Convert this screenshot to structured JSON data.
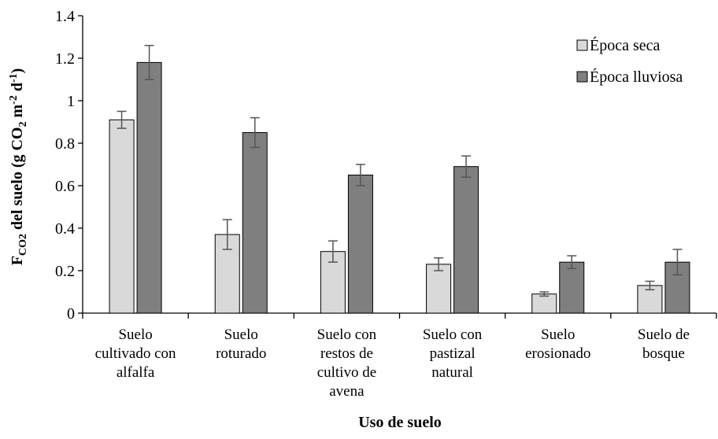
{
  "chart_data": {
    "type": "bar",
    "categories": [
      [
        "Suelo",
        "cultivado con",
        "alfalfa"
      ],
      [
        "Suelo",
        "roturado"
      ],
      [
        "Suelo con",
        "restos de",
        "cultivo de",
        "avena"
      ],
      [
        "Suelo con",
        "pastizal",
        "natural"
      ],
      [
        "Suelo",
        "erosionado"
      ],
      [
        "Suelo de",
        "bosque"
      ]
    ],
    "series": [
      {
        "name": "Época seca",
        "color": "#d9d9d9",
        "values": [
          0.91,
          0.37,
          0.29,
          0.23,
          0.09,
          0.13
        ],
        "errors": [
          0.04,
          0.07,
          0.05,
          0.03,
          0.01,
          0.02
        ]
      },
      {
        "name": "Época lluviosa",
        "color": "#7f7f7f",
        "values": [
          1.18,
          0.85,
          0.65,
          0.69,
          0.24,
          0.24
        ],
        "errors": [
          0.08,
          0.07,
          0.05,
          0.05,
          0.03,
          0.06
        ]
      }
    ],
    "ylabel": {
      "prefix": "F",
      "subscript": "CO2",
      "main": " del suelo (g CO",
      "sub2": "2",
      "mid": " m",
      "sup1": "-2",
      "mid2": " d",
      "sup2": "-1",
      "end": ")"
    },
    "xlabel": "Uso de suelo",
    "ylim": [
      0,
      1.4
    ],
    "yticks": [
      "0",
      "0.2",
      "0.4",
      "0.6",
      "0.8",
      "1",
      "1.2",
      "1.4"
    ],
    "grid": false,
    "legend_position": "top-right"
  }
}
